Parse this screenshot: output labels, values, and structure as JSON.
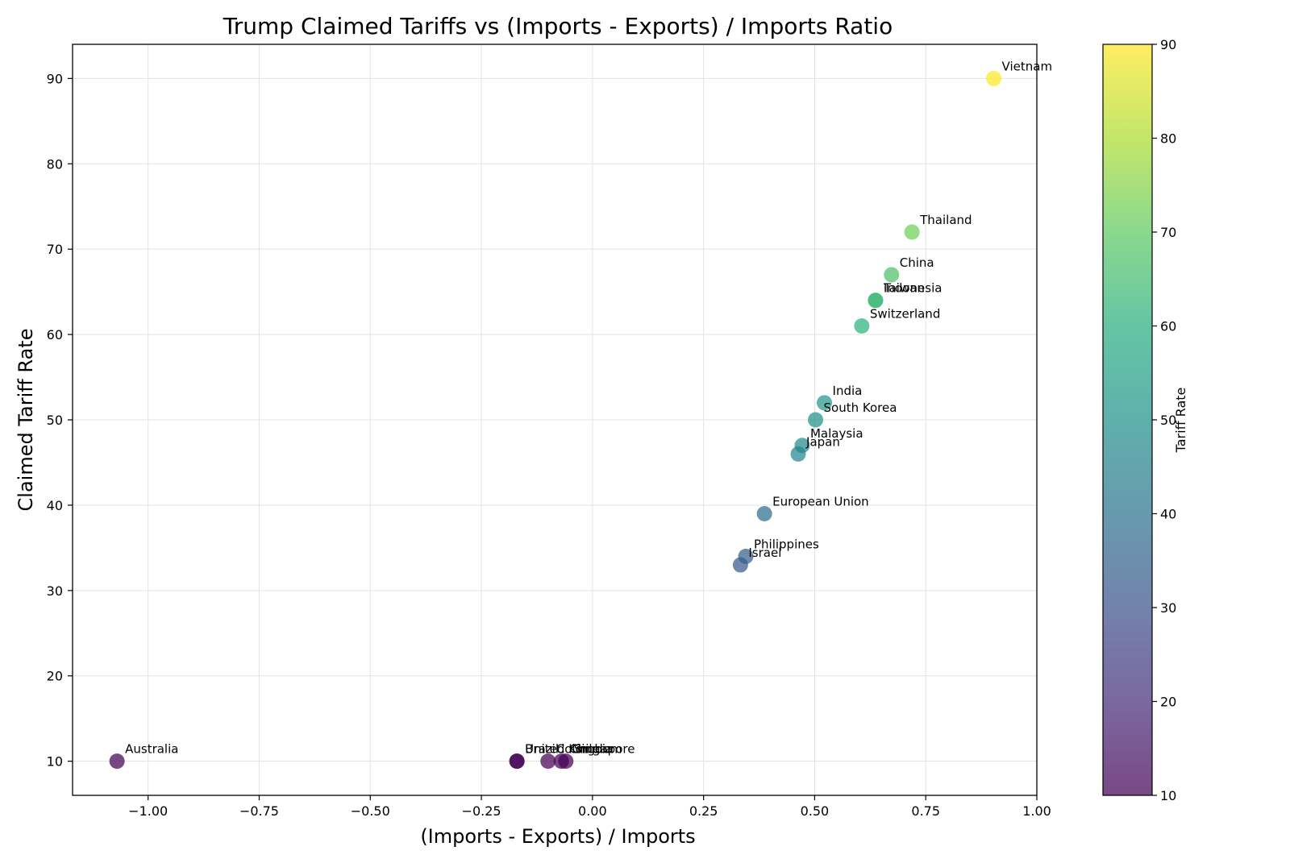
{
  "chart_data": {
    "type": "scatter",
    "title": "Trump Claimed Tariffs vs (Imports - Exports) / Imports Ratio",
    "xlabel": "(Imports - Exports) / Imports",
    "ylabel": "Claimed Tariff Rate",
    "xlim": [
      -1.17,
      1.0
    ],
    "ylim": [
      6,
      94
    ],
    "x_ticks": [
      -1.0,
      -0.75,
      -0.5,
      -0.25,
      0.0,
      0.25,
      0.5,
      0.75,
      1.0
    ],
    "x_tick_labels": [
      "−1.00",
      "−0.75",
      "−0.50",
      "−0.25",
      "0.00",
      "0.25",
      "0.50",
      "0.75",
      "1.00"
    ],
    "y_ticks": [
      10,
      20,
      30,
      40,
      50,
      60,
      70,
      80,
      90
    ],
    "y_tick_labels": [
      "10",
      "20",
      "30",
      "40",
      "50",
      "60",
      "70",
      "80",
      "90"
    ],
    "grid": true,
    "colormap": "viridis",
    "colorbar": {
      "label": "Tariff Rate",
      "range": [
        10,
        90
      ],
      "ticks": [
        10,
        20,
        30,
        40,
        50,
        60,
        70,
        80,
        90
      ],
      "tick_labels": [
        "10",
        "20",
        "30",
        "40",
        "50",
        "60",
        "70",
        "80",
        "90"
      ]
    },
    "points": [
      {
        "label": "Vietnam",
        "x": 0.903,
        "y": 90
      },
      {
        "label": "Thailand",
        "x": 0.719,
        "y": 72
      },
      {
        "label": "China",
        "x": 0.673,
        "y": 67
      },
      {
        "label": "Indonesia",
        "x": 0.637,
        "y": 64
      },
      {
        "label": "Taiwan",
        "x": 0.637,
        "y": 64
      },
      {
        "label": "Switzerland",
        "x": 0.606,
        "y": 61
      },
      {
        "label": "India",
        "x": 0.522,
        "y": 52
      },
      {
        "label": "South Korea",
        "x": 0.502,
        "y": 50
      },
      {
        "label": "Malaysia",
        "x": 0.472,
        "y": 47
      },
      {
        "label": "Japan",
        "x": 0.463,
        "y": 46
      },
      {
        "label": "European Union",
        "x": 0.387,
        "y": 39
      },
      {
        "label": "Philippines",
        "x": 0.345,
        "y": 34
      },
      {
        "label": "Israel",
        "x": 0.333,
        "y": 33
      },
      {
        "label": "Australia",
        "x": -1.07,
        "y": 10
      },
      {
        "label": "Brazil",
        "x": -0.17,
        "y": 10
      },
      {
        "label": "United Kingdom",
        "x": -0.17,
        "y": 10
      },
      {
        "label": "Colombia",
        "x": -0.1,
        "y": 10
      },
      {
        "label": "Chile",
        "x": -0.07,
        "y": 10
      },
      {
        "label": "Singapore",
        "x": -0.06,
        "y": 10
      }
    ]
  }
}
